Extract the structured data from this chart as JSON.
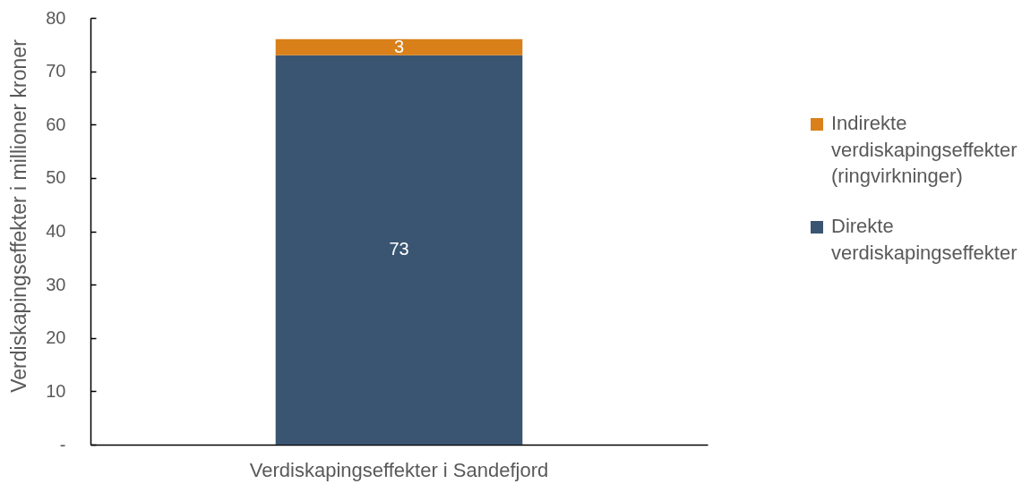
{
  "chart_data": {
    "type": "bar",
    "ylabel": "Verdiskapingseffekter i millioner kroner",
    "categories": [
      "Verdiskapingseffekter i Sandefjord"
    ],
    "series": [
      {
        "name": "Direkte verdiskapingseffekter",
        "color": "#3a5572",
        "values": [
          73
        ]
      },
      {
        "name": "Indirekte verdiskapingseffekter (ringvirkninger)",
        "color": "#d9801a",
        "values": [
          3
        ]
      }
    ],
    "stacked": true,
    "ylim": [
      0,
      80
    ],
    "yticks": [
      {
        "value": 0,
        "label": "-"
      },
      10,
      20,
      30,
      40,
      50,
      60,
      70,
      80
    ],
    "grid": false,
    "legend": "right",
    "data_labels": true
  }
}
